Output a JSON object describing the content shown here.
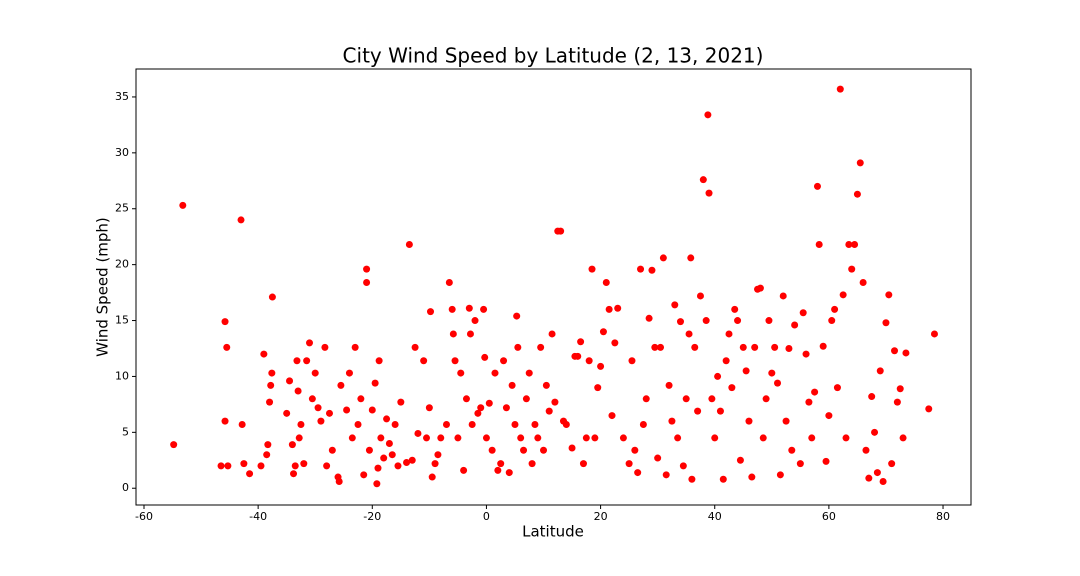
{
  "chart_data": {
    "type": "scatter",
    "title": "City Wind Speed by Latitude (2, 13, 2021)",
    "x_label": "Latitude",
    "y_label": "Wind Speed (mph)",
    "color": "#ff0000",
    "xlim": [
      -61.4,
      84.9
    ],
    "ylim": [
      -1.5,
      37.5
    ],
    "xticks": [
      -60,
      -40,
      -20,
      0,
      20,
      40,
      60,
      80
    ],
    "yticks": [
      0,
      5,
      10,
      15,
      20,
      25,
      30,
      35
    ],
    "x": [
      -54.8,
      -53.2,
      -46.5,
      -45.8,
      -45.5,
      -45.8,
      -45.3,
      -43,
      -42.8,
      -42.5,
      -41.5,
      -39.5,
      -39,
      -38.5,
      -38.3,
      -38,
      -37.8,
      -37.6,
      -37.5,
      -35,
      -34.5,
      -34,
      -33.8,
      -33.5,
      -33.2,
      -33,
      -32.8,
      -32.5,
      -32,
      -31.5,
      -31,
      -30.5,
      -30,
      -29.5,
      -29,
      -28.3,
      -28,
      -27.5,
      -27,
      -26,
      -25.8,
      -25.5,
      -24.5,
      -24,
      -23.5,
      -23,
      -22.5,
      -22,
      -21.5,
      -21,
      -21,
      -20.5,
      -20,
      -19.5,
      -19.2,
      -19,
      -18.8,
      -18.5,
      -18,
      -17.5,
      -17,
      -16.5,
      -16,
      -15.5,
      -15,
      -14,
      -13.5,
      -13,
      -12.5,
      -12,
      -11,
      -10.5,
      -10,
      -9.8,
      -9.5,
      -9,
      -8.5,
      -8,
      -7,
      -6.5,
      -6,
      -5.8,
      -5.5,
      -5,
      -4.5,
      -4,
      -3.5,
      -3,
      -2.8,
      -2.5,
      -2,
      -1.5,
      -1,
      -0.5,
      -0.3,
      0,
      0.5,
      1,
      1.5,
      2,
      2.5,
      3,
      3.5,
      4,
      4.5,
      5,
      5.3,
      5.5,
      6,
      6.5,
      7,
      7.5,
      8,
      8.5,
      9,
      9.5,
      10,
      10.5,
      11,
      11.5,
      12,
      12.5,
      13,
      13.5,
      14,
      15,
      15.5,
      16,
      16.5,
      17,
      17.5,
      18,
      18.5,
      19,
      19.5,
      20,
      20.5,
      21,
      21.5,
      22,
      22.5,
      23,
      24,
      25,
      25.5,
      26,
      26.5,
      27,
      27.5,
      28,
      28.5,
      29,
      29.5,
      30,
      30.5,
      31,
      31.5,
      32,
      32.5,
      33,
      33.5,
      34,
      34.5,
      35,
      35.5,
      35.8,
      36,
      36.5,
      37,
      37.5,
      38,
      38.5,
      38.8,
      39,
      39.5,
      40,
      40.5,
      41,
      41.5,
      42,
      42.5,
      43,
      43.5,
      44,
      44.5,
      45,
      45.5,
      46,
      46.5,
      47,
      47.5,
      48,
      48.5,
      49,
      49.5,
      50,
      50.5,
      51,
      51.5,
      52,
      52.5,
      53,
      53.5,
      54,
      55,
      55.5,
      56,
      56.5,
      57,
      57.5,
      58,
      58.3,
      59,
      59.5,
      60,
      60.5,
      61,
      61.5,
      62,
      62.5,
      63,
      63.5,
      64,
      64.5,
      65,
      65.5,
      66,
      66.5,
      67,
      67.5,
      68,
      68.5,
      69,
      69.5,
      70,
      70.5,
      71,
      71.5,
      72,
      72.5,
      73,
      73.5,
      77.5,
      78.5
    ],
    "values": [
      3.9,
      25.3,
      2,
      14.9,
      12.6,
      6,
      2,
      24,
      5.7,
      2.2,
      1.3,
      2,
      12,
      3,
      3.9,
      7.7,
      9.2,
      10.3,
      17.1,
      6.7,
      9.6,
      3.9,
      1.3,
      2,
      11.4,
      8.7,
      4.5,
      5.7,
      2.2,
      11.4,
      13,
      8,
      10.3,
      7.2,
      6,
      12.6,
      2,
      6.7,
      3.4,
      1,
      0.6,
      9.2,
      7,
      10.3,
      4.5,
      12.6,
      5.7,
      8,
      1.2,
      18.4,
      19.6,
      3.4,
      7,
      9.4,
      0.4,
      1.8,
      11.4,
      4.5,
      2.7,
      6.2,
      4,
      3,
      5.7,
      2,
      7.7,
      2.3,
      21.8,
      2.5,
      12.6,
      4.9,
      11.4,
      4.5,
      7.2,
      15.8,
      1,
      2.2,
      3,
      4.5,
      5.7,
      18.4,
      16,
      13.8,
      11.4,
      4.5,
      10.3,
      1.6,
      8,
      16.1,
      13.8,
      5.7,
      15,
      6.7,
      7.2,
      16,
      11.7,
      4.5,
      7.6,
      3.4,
      10.3,
      1.6,
      2.2,
      11.4,
      7.2,
      1.4,
      9.2,
      5.7,
      15.4,
      12.6,
      4.5,
      3.4,
      8,
      10.3,
      2.2,
      5.7,
      4.5,
      12.6,
      3.4,
      9.2,
      6.9,
      13.8,
      7.7,
      23,
      23,
      6,
      5.7,
      3.6,
      11.8,
      11.8,
      13.1,
      2.2,
      4.5,
      11.4,
      19.6,
      4.5,
      9,
      10.9,
      14,
      18.4,
      16,
      6.5,
      13,
      16.1,
      4.5,
      2.2,
      11.4,
      3.4,
      1.4,
      19.6,
      5.7,
      8,
      15.2,
      19.5,
      12.6,
      2.7,
      12.6,
      20.6,
      1.2,
      9.2,
      6,
      16.4,
      4.5,
      14.9,
      2,
      8,
      13.8,
      20.6,
      0.8,
      12.6,
      6.9,
      17.2,
      27.6,
      15,
      33.4,
      26.4,
      8,
      4.5,
      10,
      6.9,
      0.8,
      11.4,
      13.8,
      9,
      16,
      15,
      2.5,
      12.6,
      10.5,
      6,
      1,
      12.6,
      17.8,
      17.9,
      4.5,
      8,
      15,
      10.3,
      12.6,
      9.4,
      1.2,
      17.2,
      6,
      12.5,
      3.4,
      14.6,
      2.2,
      15.7,
      12,
      7.7,
      4.5,
      8.6,
      27,
      21.8,
      12.7,
      2.4,
      6.5,
      15,
      16,
      9,
      35.7,
      17.3,
      4.5,
      21.8,
      19.6,
      21.8,
      26.3,
      29.1,
      18.4,
      3.4,
      0.9,
      8.2,
      5,
      1.4,
      10.5,
      0.6,
      14.8,
      17.3,
      2.2,
      12.3,
      7.7,
      8.9,
      4.5,
      12.1,
      7.1,
      13.8
    ]
  }
}
